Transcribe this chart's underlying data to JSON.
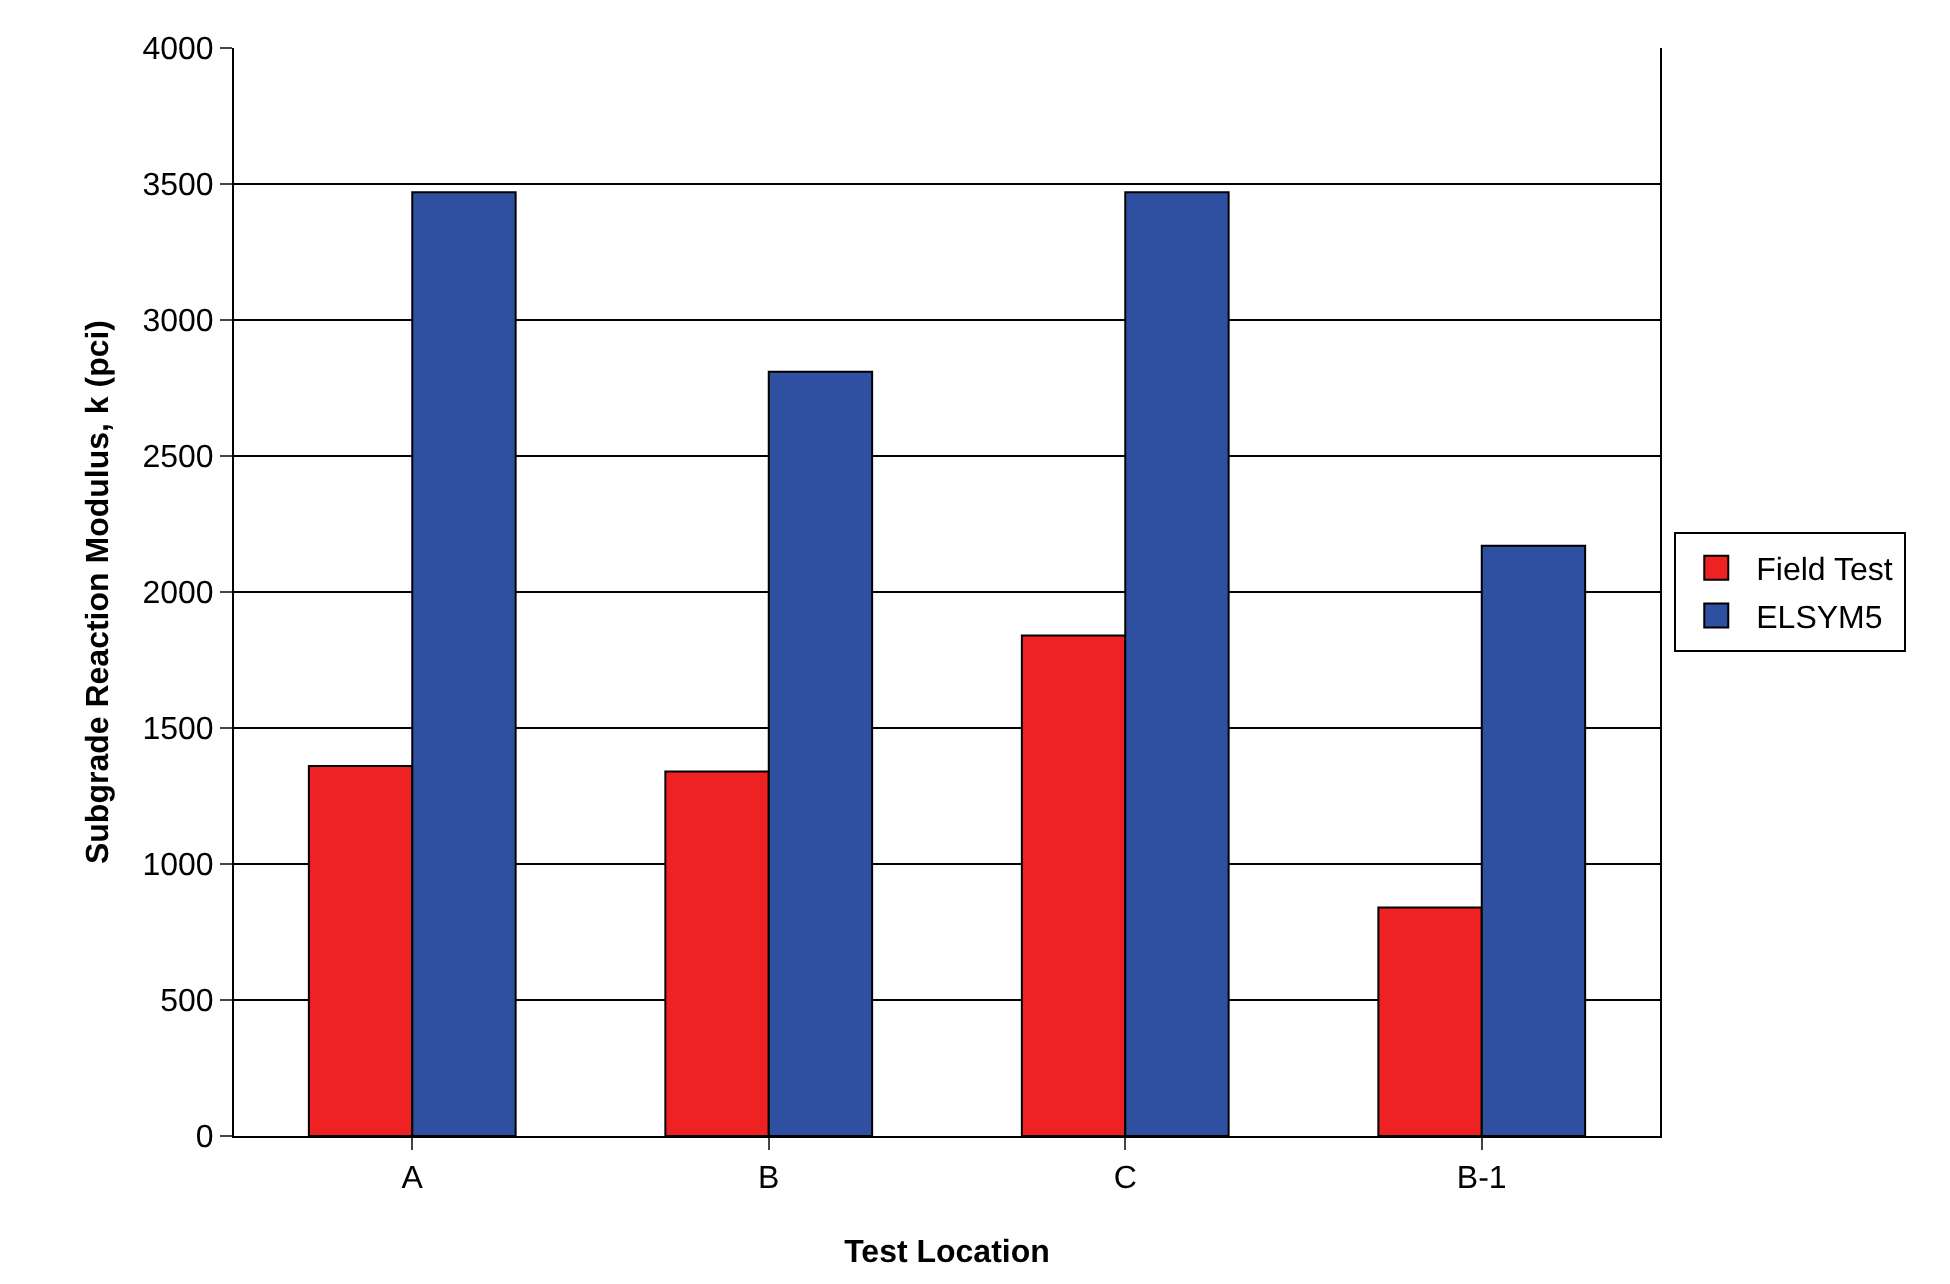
{
  "chart_data": {
    "type": "bar",
    "xlabel": "Test Location",
    "ylabel": "Subgrade Reaction Modulus, k (pci)",
    "categories": [
      "A",
      "B",
      "C",
      "B-1"
    ],
    "series": [
      {
        "name": "Field Test",
        "color": "#ee2222",
        "values": [
          1360,
          1340,
          1840,
          840
        ]
      },
      {
        "name": "ELSYM5",
        "color": "#2f4fa0",
        "values": [
          3470,
          2810,
          3470,
          2170
        ]
      }
    ],
    "ylim": [
      0,
      4000
    ],
    "yticks": [
      0,
      500,
      1000,
      1500,
      2000,
      2500,
      3000,
      3500,
      4000
    ],
    "grid": "y",
    "legend": "right"
  }
}
